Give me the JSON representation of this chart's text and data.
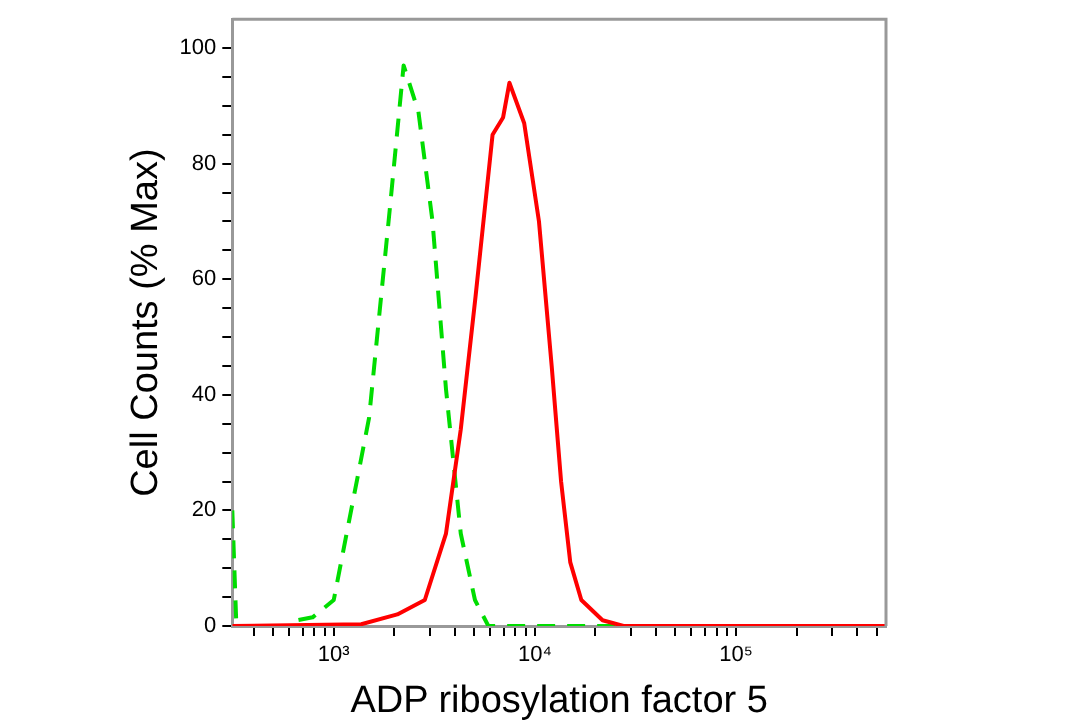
{
  "chart_data": {
    "type": "line",
    "xlabel": "ADP ribosylation factor 5",
    "ylabel": "Cell Counts (% Max)",
    "log": "x",
    "grid": false,
    "legend": false,
    "marker": "none",
    "xlim": [
      313,
      557000
    ],
    "ylim": [
      0,
      105
    ],
    "xticks": [
      {
        "value": 400,
        "label": null
      },
      {
        "value": 500,
        "label": null
      },
      {
        "value": 600,
        "label": null
      },
      {
        "value": 700,
        "label": null
      },
      {
        "value": 800,
        "label": null
      },
      {
        "value": 900,
        "label": null
      },
      {
        "value": 1000,
        "label": "10³"
      },
      {
        "value": 2000,
        "label": null
      },
      {
        "value": 3000,
        "label": null
      },
      {
        "value": 4000,
        "label": null
      },
      {
        "value": 5000,
        "label": null
      },
      {
        "value": 6000,
        "label": null
      },
      {
        "value": 7000,
        "label": null
      },
      {
        "value": 8000,
        "label": null
      },
      {
        "value": 9000,
        "label": null
      },
      {
        "value": 10000,
        "label": "10⁴"
      },
      {
        "value": 20000,
        "label": null
      },
      {
        "value": 30000,
        "label": null
      },
      {
        "value": 40000,
        "label": null
      },
      {
        "value": 50000,
        "label": null
      },
      {
        "value": 60000,
        "label": null
      },
      {
        "value": 70000,
        "label": null
      },
      {
        "value": 80000,
        "label": null
      },
      {
        "value": 90000,
        "label": null
      },
      {
        "value": 100000,
        "label": "10⁵"
      },
      {
        "value": 200000,
        "label": null
      },
      {
        "value": 300000,
        "label": null
      },
      {
        "value": 400000,
        "label": null
      },
      {
        "value": 500000,
        "label": null
      }
    ],
    "yticks": [
      0,
      {
        "value": 5,
        "label": null
      },
      {
        "value": 10,
        "label": null
      },
      {
        "value": 15,
        "label": null
      },
      20,
      {
        "value": 25,
        "label": null
      },
      {
        "value": 30,
        "label": null
      },
      {
        "value": 35,
        "label": null
      },
      40,
      {
        "value": 45,
        "label": null
      },
      {
        "value": 50,
        "label": null
      },
      {
        "value": 55,
        "label": null
      },
      60,
      {
        "value": 65,
        "label": null
      },
      {
        "value": 70,
        "label": null
      },
      {
        "value": 75,
        "label": null
      },
      80,
      {
        "value": 85,
        "label": null
      },
      {
        "value": 90,
        "label": null
      },
      {
        "value": 95,
        "label": null
      },
      100
    ],
    "series": [
      {
        "color": "#ff0000",
        "line_style": "solid",
        "x": [
          313,
          1370,
          2070,
          2836,
          3614,
          4280,
          5070,
          6160,
          6950,
          7470,
          8850,
          10480,
          12120,
          13500,
          15000,
          17020,
          21700,
          27600,
          557000
        ],
        "values": [
          0,
          0.3,
          2,
          4.5,
          16,
          34,
          57,
          85,
          88,
          94,
          87,
          70,
          45,
          25,
          11,
          4.5,
          1,
          0,
          0
        ]
      },
      {
        "color": "#00dd00",
        "line_style": "dashed",
        "x": [
          313,
          328,
          616,
          662,
          785,
          1000,
          1498,
          1910,
          2225,
          2636,
          3098,
          3614,
          4280,
          5036,
          5870,
          557000
        ],
        "values": [
          20,
          0,
          0,
          1,
          1.5,
          4.5,
          36,
          73,
          97,
          89,
          70,
          41,
          16,
          4.5,
          0,
          0
        ]
      }
    ]
  }
}
